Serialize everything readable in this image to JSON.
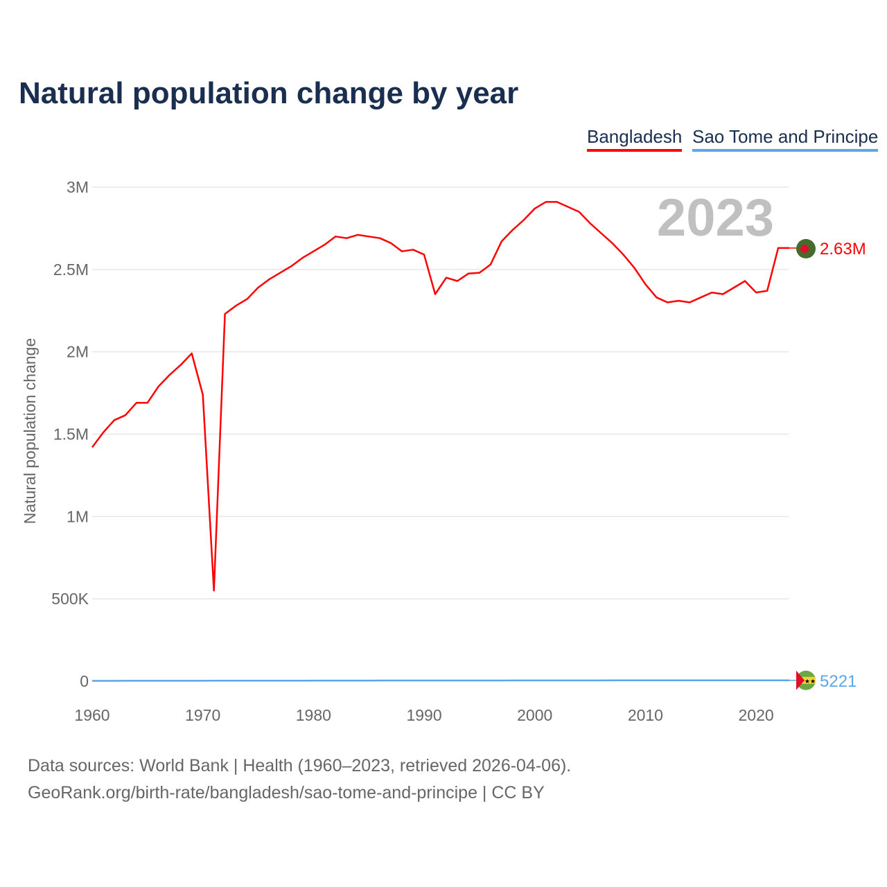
{
  "chart_data": {
    "type": "line",
    "title": "Natural population change by year",
    "xlabel": "",
    "ylabel": "Natural population change",
    "xlim": [
      1960,
      2023
    ],
    "ylim": [
      0,
      3000000
    ],
    "x_ticks": [
      1960,
      1970,
      1980,
      1990,
      2000,
      2010,
      2020
    ],
    "x_tick_labels": [
      "1960",
      "1970",
      "1980",
      "1990",
      "2000",
      "2010",
      "2020"
    ],
    "y_ticks": [
      0,
      500000,
      1000000,
      1500000,
      2000000,
      2500000,
      3000000
    ],
    "y_tick_labels": [
      "0",
      "500K",
      "1M",
      "1.5M",
      "2M",
      "2.5M",
      "3M"
    ],
    "grid": true,
    "legend_position": "top-right",
    "year_watermark": "2023",
    "x": [
      1960,
      1961,
      1962,
      1963,
      1964,
      1965,
      1966,
      1967,
      1968,
      1969,
      1970,
      1971,
      1972,
      1973,
      1974,
      1975,
      1976,
      1977,
      1978,
      1979,
      1980,
      1981,
      1982,
      1983,
      1984,
      1985,
      1986,
      1987,
      1988,
      1989,
      1990,
      1991,
      1992,
      1993,
      1994,
      1995,
      1996,
      1997,
      1998,
      1999,
      2000,
      2001,
      2002,
      2003,
      2004,
      2005,
      2006,
      2007,
      2008,
      2009,
      2010,
      2011,
      2012,
      2013,
      2014,
      2015,
      2016,
      2017,
      2018,
      2019,
      2020,
      2021,
      2022,
      2023
    ],
    "series": [
      {
        "name": "Bangladesh",
        "color": "#ff0000",
        "end_label": "2.63M",
        "values": [
          1420000,
          1510000,
          1585000,
          1615000,
          1690000,
          1690000,
          1790000,
          1860000,
          1920000,
          1990000,
          1740000,
          550000,
          2230000,
          2280000,
          2320000,
          2390000,
          2440000,
          2480000,
          2520000,
          2570000,
          2610000,
          2650000,
          2700000,
          2690000,
          2710000,
          2700000,
          2690000,
          2660000,
          2610000,
          2620000,
          2590000,
          2350000,
          2450000,
          2430000,
          2475000,
          2480000,
          2530000,
          2670000,
          2740000,
          2800000,
          2870000,
          2910000,
          2910000,
          2880000,
          2850000,
          2780000,
          2720000,
          2660000,
          2590000,
          2510000,
          2410000,
          2330000,
          2300000,
          2310000,
          2300000,
          2330000,
          2360000,
          2350000,
          2390000,
          2430000,
          2360000,
          2370000,
          2630000,
          2630000
        ]
      },
      {
        "name": "Sao Tome and Principe",
        "color": "#5aa5ec",
        "end_label": "5221",
        "values": [
          2100,
          2200,
          2300,
          2350,
          2400,
          2450,
          2500,
          2550,
          2600,
          2650,
          2700,
          2750,
          2800,
          2900,
          3000,
          3100,
          3200,
          3300,
          3400,
          3500,
          3600,
          3700,
          3800,
          3850,
          3900,
          3950,
          4000,
          4050,
          4100,
          4150,
          4200,
          4250,
          4300,
          4300,
          4350,
          4350,
          4400,
          4400,
          4450,
          4450,
          4500,
          4550,
          4600,
          4650,
          4700,
          4750,
          4800,
          4850,
          4900,
          4950,
          5000,
          5050,
          5100,
          5150,
          5200,
          5250,
          5300,
          5300,
          5350,
          5350,
          5300,
          5250,
          5230,
          5221
        ]
      }
    ]
  },
  "legend": [
    "Bangladesh",
    "Sao Tome and Principe"
  ],
  "source": {
    "line1": "Data sources: World Bank | Health (1960–2023, retrieved 2026-04-06).",
    "line2": "GeoRank.org/birth-rate/bangladesh/sao-tome-and-principe | CC BY"
  }
}
